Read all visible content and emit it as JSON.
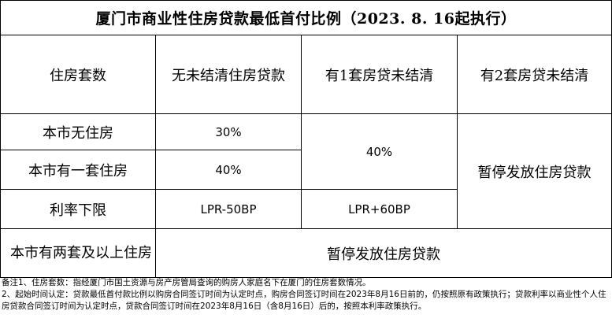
{
  "title": "厦门市商业性住房贷款最低首付比例（2023. 8. 16起执行）",
  "headers": {
    "col0": "住房套数",
    "col1": "无未结清住房贷款",
    "col2": "有1套房贷未结清",
    "col3": "有2套房贷未结清"
  },
  "rows": {
    "no_house": {
      "label": "本市无住房",
      "col1": "30%"
    },
    "one_house": {
      "label": "本市有一套住房",
      "col1": "40%"
    },
    "merged_col2": "40%",
    "merged_col3": "暂停发放住房贷款",
    "rate_floor": {
      "label": "利率下限",
      "col1": "LPR-50BP",
      "col2": "LPR+60BP"
    },
    "two_plus": {
      "label": "本市有两套及以上住房",
      "value": "暂停发放住房贷款"
    }
  },
  "notes": [
    "备注1、住房套数：指经厦门市国土资源与房产房管局查询的购房人家庭名下在厦门的住房套数情况。",
    "2、起始时间认定：贷款最低首付款比例以购房合同签订时间为认定时点，购房合同签订时间在2023年8月16日前的，仍按照原有政策执行；贷款利率以商业性个人住房贷款合同签订时间为认定时点，贷款合同签订时间在2023年8月16日（含8月16日）后的，按照本利率政策执行。"
  ]
}
